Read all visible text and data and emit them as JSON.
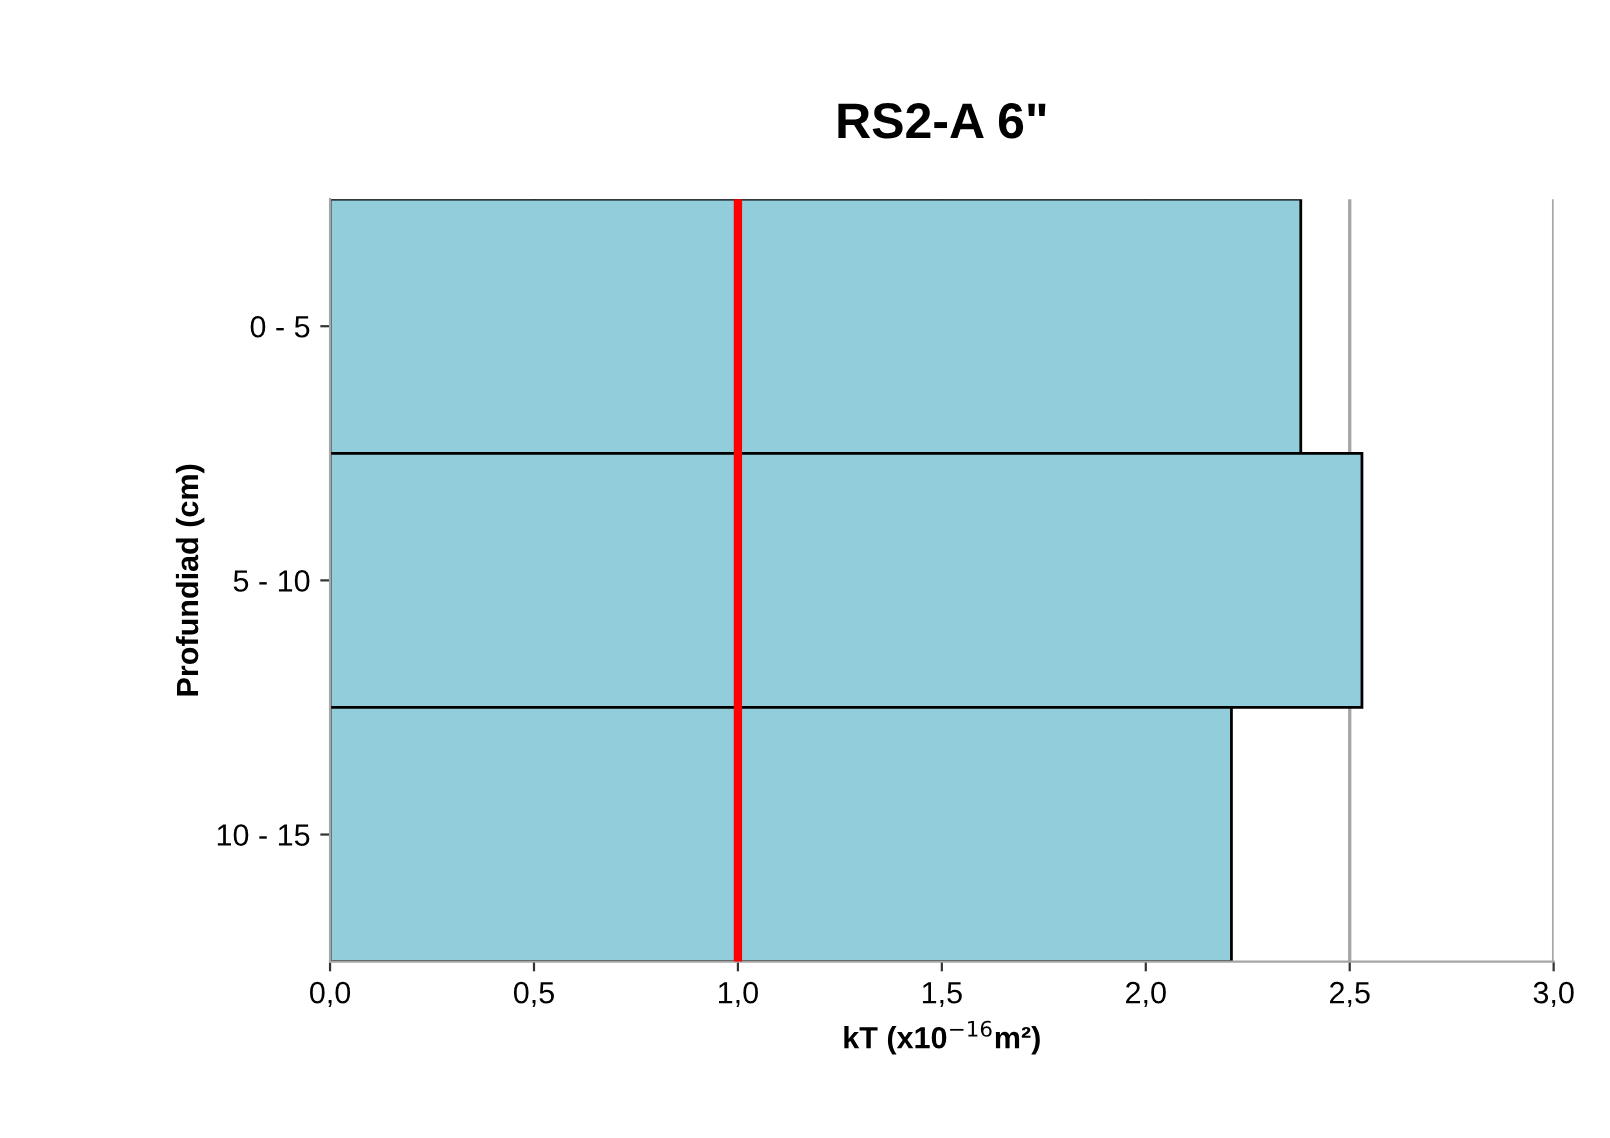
{
  "chart_data": {
    "type": "bar",
    "orientation": "horizontal",
    "title": "RS2-A 6\"",
    "categories": [
      "0 - 5",
      "5 - 10",
      "10 - 15"
    ],
    "values": [
      2.38,
      2.53,
      2.21
    ],
    "color": "#92cddc",
    "xlabel": "kT (x10$^{−16}$m²)",
    "ylabel": "Profundiad (cm)",
    "xlim": [
      0,
      3
    ],
    "xticks": [
      {
        "value": 0,
        "label": "0,0"
      },
      {
        "value": 0.5,
        "label": "0,5"
      },
      {
        "value": 1,
        "label": "1,0"
      },
      {
        "value": 1.5,
        "label": "1,5"
      },
      {
        "value": 2,
        "label": "2,0"
      },
      {
        "value": 2.5,
        "label": "2,5"
      },
      {
        "value": 3,
        "label": "3,0"
      }
    ],
    "grid": "x",
    "ref_lines": [
      {
        "axis": "x",
        "value": 1,
        "color": "#ff0000"
      }
    ]
  }
}
